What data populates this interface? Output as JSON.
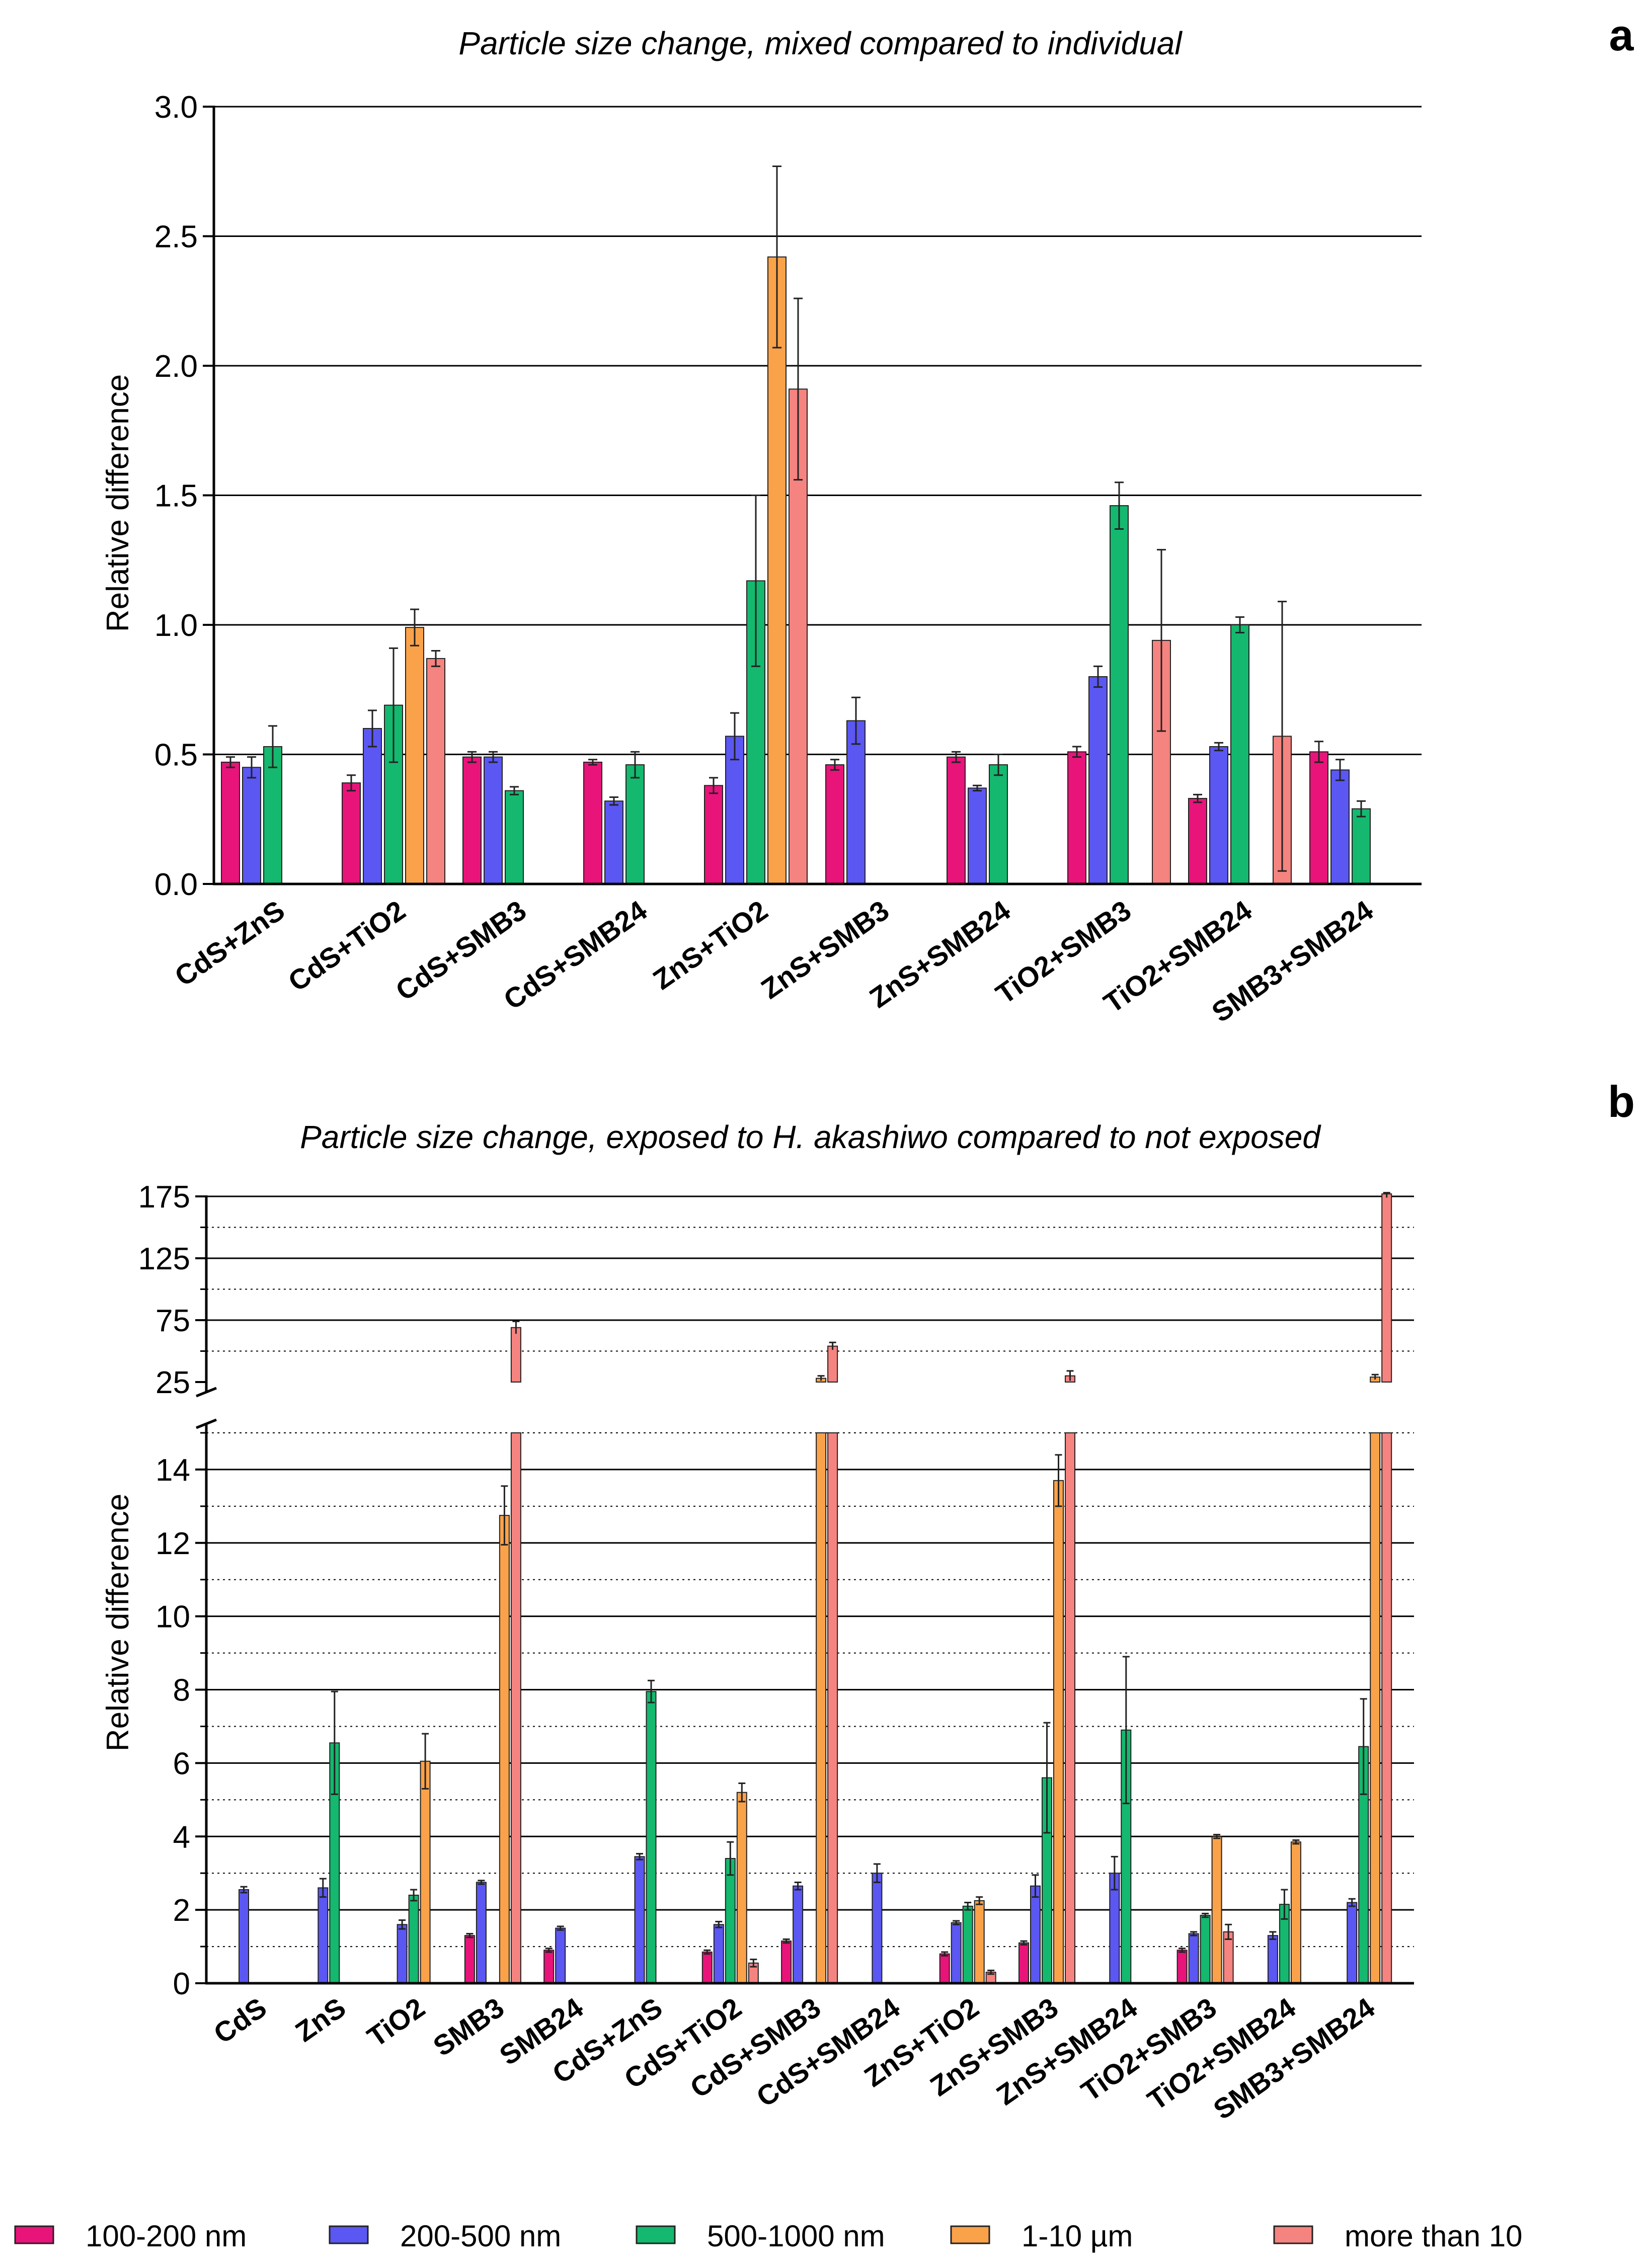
{
  "legend": [
    {
      "label": "100-200 nm",
      "color": "#E8147A"
    },
    {
      "label": "200-500 nm",
      "color": "#5B57F2"
    },
    {
      "label": "500-1000 nm",
      "color": "#14B86E"
    },
    {
      "label": "1-10 µm",
      "color": "#FAA24A"
    },
    {
      "label": "more than 10",
      "color": "#F5837F"
    }
  ],
  "chart_data": [
    {
      "panel": "a",
      "type": "bar",
      "title": "Particle size change, mixed compared to individual",
      "ylabel": "Relative difference",
      "xlabel": "",
      "ylim": [
        0,
        3.0
      ],
      "yticks": [
        "0.0",
        "0.5",
        "1.0",
        "1.5",
        "2.0",
        "2.5",
        "3.0"
      ],
      "grid": "major horizontal",
      "categories": [
        "CdS+ZnS",
        "CdS+TiO2",
        "CdS+SMB3",
        "CdS+SMB24",
        "ZnS+TiO2",
        "ZnS+SMB3",
        "ZnS+SMB24",
        "TiO2+SMB3",
        "TiO2+SMB24",
        "SMB3+SMB24"
      ],
      "series": [
        {
          "name": "100-200 nm",
          "values": [
            0.47,
            0.39,
            0.49,
            0.47,
            0.38,
            0.46,
            0.49,
            0.51,
            0.33,
            0.51
          ],
          "errors": [
            0.02,
            0.03,
            0.02,
            0.01,
            0.03,
            0.02,
            0.02,
            0.02,
            0.015,
            0.04
          ]
        },
        {
          "name": "200-500 nm",
          "values": [
            0.45,
            0.6,
            0.49,
            0.32,
            0.57,
            0.63,
            0.37,
            0.8,
            0.53,
            0.44
          ],
          "errors": [
            0.04,
            0.07,
            0.02,
            0.015,
            0.09,
            0.09,
            0.01,
            0.04,
            0.015,
            0.04
          ]
        },
        {
          "name": "500-1000 nm",
          "values": [
            0.53,
            0.69,
            0.36,
            0.46,
            1.17,
            null,
            0.46,
            1.46,
            1.0,
            0.29
          ],
          "errors": [
            0.08,
            0.22,
            0.015,
            0.05,
            0.33,
            null,
            0.04,
            0.09,
            0.03,
            0.03
          ]
        },
        {
          "name": "1-10 µm",
          "values": [
            null,
            0.99,
            null,
            null,
            2.42,
            null,
            null,
            null,
            null,
            null
          ],
          "errors": [
            null,
            0.07,
            null,
            null,
            0.35,
            null,
            null,
            null,
            null,
            null
          ]
        },
        {
          "name": "more than 10",
          "values": [
            null,
            0.87,
            null,
            null,
            1.91,
            null,
            null,
            0.94,
            0.57,
            null
          ],
          "errors": [
            null,
            0.03,
            null,
            null,
            0.35,
            null,
            null,
            0.35,
            0.52,
            null
          ]
        }
      ]
    },
    {
      "panel": "b",
      "type": "bar",
      "title": "Particle size change, exposed to H. akashiwo compared to not exposed",
      "ylabel": "Relative difference",
      "xlabel": "",
      "ylim": [
        0,
        175
      ],
      "axis_break": {
        "lower": [
          0,
          15
        ],
        "upper": [
          25,
          175
        ]
      },
      "yticks_lower": [
        "0",
        "2",
        "4",
        "6",
        "8",
        "10",
        "12",
        "14"
      ],
      "yticks_upper": [
        "25",
        "75",
        "125",
        "175"
      ],
      "grid": "major solid, minor dotted",
      "categories": [
        "CdS",
        "ZnS",
        "TiO2",
        "SMB3",
        "SMB24",
        "CdS+ZnS",
        "CdS+TiO2",
        "CdS+SMB3",
        "CdS+SMB24",
        "ZnS+TiO2",
        "ZnS+SMB3",
        "ZnS+SMB24",
        "TiO2+SMB3",
        "TiO2+SMB24",
        "SMB3+SMB24"
      ],
      "series": [
        {
          "name": "100-200 nm",
          "values": [
            null,
            null,
            null,
            1.3,
            0.9,
            null,
            0.85,
            1.15,
            null,
            0.8,
            1.1,
            null,
            0.9,
            null,
            null
          ],
          "errors": [
            null,
            null,
            null,
            0.05,
            0.05,
            null,
            0.05,
            0.05,
            null,
            0.05,
            0.05,
            null,
            0.05,
            null,
            null
          ]
        },
        {
          "name": "200-500 nm",
          "values": [
            2.55,
            2.6,
            1.6,
            2.75,
            1.5,
            3.45,
            1.6,
            2.65,
            3.0,
            1.65,
            2.65,
            3.0,
            1.35,
            1.3,
            2.2
          ],
          "errors": [
            0.08,
            0.25,
            0.12,
            0.05,
            0.05,
            0.08,
            0.08,
            0.1,
            0.25,
            0.05,
            0.3,
            0.45,
            0.05,
            0.1,
            0.1
          ]
        },
        {
          "name": "500-1000 nm",
          "values": [
            null,
            6.55,
            2.4,
            null,
            null,
            7.95,
            3.4,
            null,
            null,
            2.1,
            5.6,
            6.9,
            1.85,
            2.15,
            6.45
          ],
          "errors": [
            null,
            1.4,
            0.15,
            null,
            null,
            0.3,
            0.45,
            null,
            null,
            0.1,
            1.5,
            2.0,
            0.05,
            0.4,
            1.3
          ]
        },
        {
          "name": "1-10 µm",
          "values": [
            null,
            null,
            6.05,
            12.75,
            null,
            null,
            5.2,
            28,
            null,
            2.25,
            13.7,
            null,
            4.0,
            3.85,
            29
          ],
          "errors": [
            null,
            null,
            0.75,
            0.8,
            null,
            null,
            0.25,
            2,
            null,
            0.1,
            0.7,
            null,
            0.05,
            0.05,
            2
          ]
        },
        {
          "name": "more than 10",
          "values": [
            null,
            null,
            null,
            69,
            null,
            null,
            0.55,
            54,
            null,
            0.3,
            30,
            null,
            1.4,
            null,
            177
          ],
          "errors": [
            null,
            null,
            null,
            5,
            null,
            null,
            0.1,
            3,
            null,
            0.05,
            4,
            null,
            0.2,
            null,
            3
          ]
        }
      ]
    }
  ]
}
